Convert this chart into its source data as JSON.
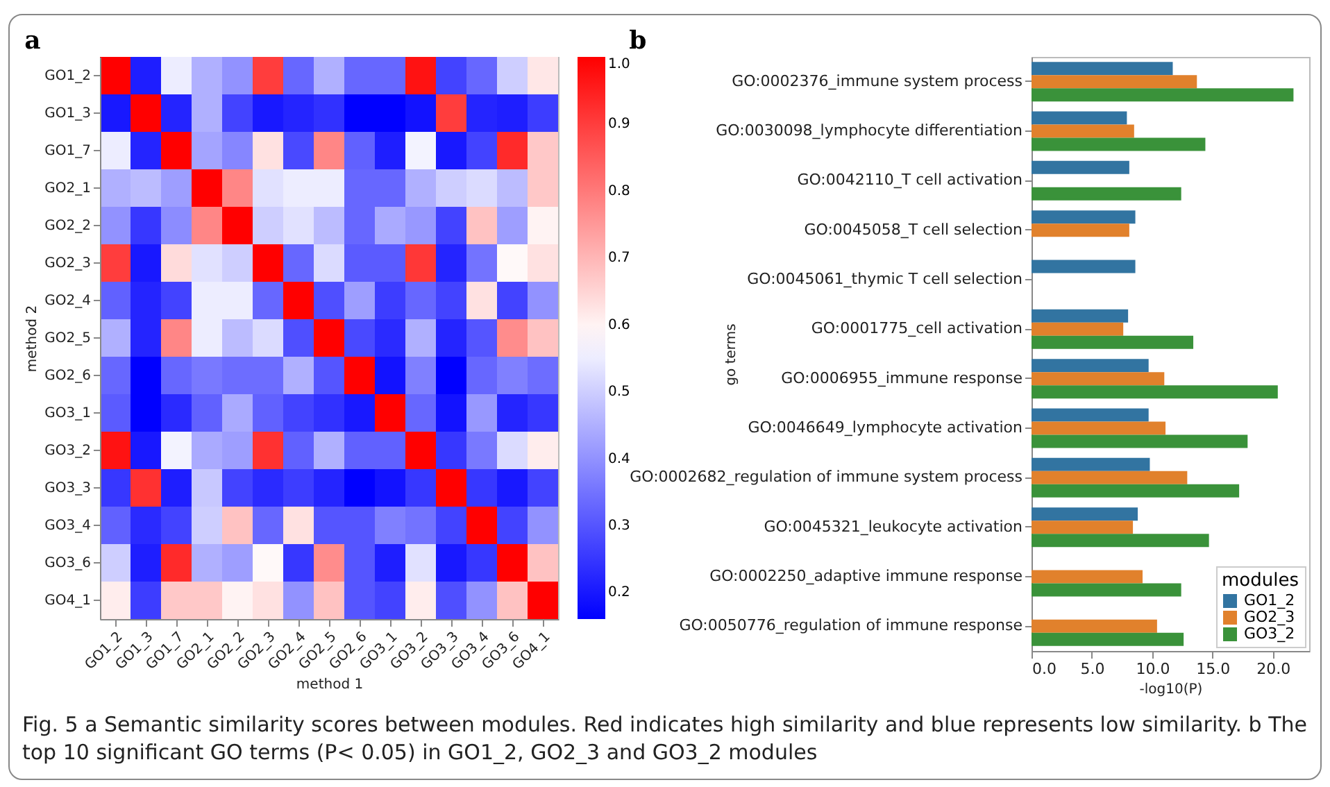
{
  "chart_data": [
    {
      "type": "heatmap",
      "title": "a",
      "xlabel": "method 1",
      "ylabel": "method 2",
      "categories": [
        "GO1_2",
        "GO1_3",
        "GO1_7",
        "GO2_1",
        "GO2_2",
        "GO2_3",
        "GO2_4",
        "GO2_5",
        "GO2_6",
        "GO3_1",
        "GO3_2",
        "GO3_3",
        "GO3_4",
        "GO3_6",
        "GO4_1"
      ],
      "y_categories": [
        "GO1_2",
        "GO1_3",
        "GO1_7",
        "GO2_1",
        "GO2_2",
        "GO2_3",
        "GO2_4",
        "GO2_5",
        "GO2_6",
        "GO3_1",
        "GO3_2",
        "GO3_3",
        "GO3_4",
        "GO3_6",
        "GO4_1"
      ],
      "cells": [
        [
          1.0,
          0.21,
          0.55,
          0.45,
          0.4,
          0.9,
          0.33,
          0.45,
          0.33,
          0.33,
          0.97,
          0.27,
          0.33,
          0.5,
          0.62
        ],
        [
          0.2,
          1.0,
          0.22,
          0.45,
          0.27,
          0.2,
          0.22,
          0.24,
          0.16,
          0.16,
          0.19,
          0.9,
          0.22,
          0.21,
          0.26
        ],
        [
          0.55,
          0.22,
          1.0,
          0.43,
          0.38,
          0.63,
          0.28,
          0.78,
          0.32,
          0.21,
          0.56,
          0.2,
          0.27,
          0.93,
          0.67
        ],
        [
          0.45,
          0.47,
          0.42,
          1.0,
          0.78,
          0.53,
          0.55,
          0.55,
          0.33,
          0.33,
          0.45,
          0.5,
          0.52,
          0.47,
          0.67
        ],
        [
          0.4,
          0.25,
          0.39,
          0.78,
          1.0,
          0.5,
          0.53,
          0.47,
          0.33,
          0.44,
          0.41,
          0.27,
          0.68,
          0.42,
          0.6
        ],
        [
          0.9,
          0.2,
          0.64,
          0.53,
          0.5,
          1.0,
          0.33,
          0.52,
          0.31,
          0.31,
          0.91,
          0.22,
          0.35,
          0.59,
          0.63
        ],
        [
          0.32,
          0.22,
          0.27,
          0.55,
          0.55,
          0.33,
          1.0,
          0.29,
          0.42,
          0.26,
          0.33,
          0.27,
          0.63,
          0.27,
          0.4
        ],
        [
          0.45,
          0.22,
          0.78,
          0.55,
          0.47,
          0.52,
          0.29,
          1.0,
          0.28,
          0.23,
          0.45,
          0.22,
          0.3,
          0.77,
          0.68
        ],
        [
          0.33,
          0.16,
          0.33,
          0.36,
          0.34,
          0.34,
          0.45,
          0.3,
          1.0,
          0.19,
          0.37,
          0.16,
          0.33,
          0.37,
          0.34
        ],
        [
          0.31,
          0.16,
          0.23,
          0.32,
          0.44,
          0.32,
          0.27,
          0.24,
          0.2,
          1.0,
          0.33,
          0.19,
          0.41,
          0.22,
          0.25
        ],
        [
          0.97,
          0.2,
          0.56,
          0.44,
          0.42,
          0.92,
          0.32,
          0.45,
          0.32,
          0.32,
          1.0,
          0.25,
          0.36,
          0.52,
          0.61
        ],
        [
          0.25,
          0.92,
          0.21,
          0.49,
          0.27,
          0.23,
          0.26,
          0.22,
          0.16,
          0.19,
          0.25,
          1.0,
          0.25,
          0.2,
          0.27
        ],
        [
          0.32,
          0.23,
          0.27,
          0.5,
          0.68,
          0.33,
          0.63,
          0.3,
          0.3,
          0.37,
          0.35,
          0.27,
          1.0,
          0.27,
          0.4
        ],
        [
          0.5,
          0.21,
          0.93,
          0.45,
          0.42,
          0.59,
          0.25,
          0.77,
          0.3,
          0.21,
          0.53,
          0.2,
          0.25,
          1.0,
          0.68
        ],
        [
          0.61,
          0.26,
          0.67,
          0.67,
          0.6,
          0.63,
          0.4,
          0.68,
          0.3,
          0.27,
          0.61,
          0.29,
          0.4,
          0.68,
          1.0
        ]
      ],
      "clim": [
        0.16,
        1.0
      ],
      "cticks": [
        0.2,
        0.3,
        0.4,
        0.5,
        0.6,
        0.7,
        0.8,
        0.9,
        {
          "value": 1.0,
          "label": "1.0"
        }
      ],
      "annotations": [
        "Fig. 5 a Semantic similarity scores between modules. Red indicates high similarity and blue represents low similarity. b The top 10 significant GO terms (P< 0.05) in GO1_2, GO2_3 and GO3_2 modules"
      ]
    },
    {
      "type": "bar",
      "orientation": "horizontal",
      "title": "b",
      "xlabel": "-log10(P)",
      "ylabel": "go terms",
      "legend_title": "modules",
      "legend": "bottom right",
      "categories": [
        "GO:0002376_immune system process",
        "GO:0030098_lymphocyte differentiation",
        "GO:0042110_T cell activation",
        "GO:0045058_T cell selection",
        "GO:0045061_thymic T cell selection",
        "GO:0001775_cell activation",
        "GO:0006955_immune response",
        "GO:0046649_lymphocyte activation",
        "GO:0002682_regulation of immune system process",
        "GO:0045321_leukocyte activation",
        "GO:0002250_adaptive immune response",
        "GO:0050776_regulation of immune response"
      ],
      "series": [
        {
          "name": "GO1_2",
          "color": "#3274a1",
          "values": [
            11.7,
            7.9,
            8.1,
            8.6,
            8.6,
            8.0,
            9.7,
            9.7,
            9.8,
            8.8,
            null,
            null
          ]
        },
        {
          "name": "GO2_3",
          "color": "#e1812c",
          "values": [
            13.7,
            8.5,
            null,
            8.1,
            null,
            7.6,
            11.0,
            11.1,
            12.9,
            8.4,
            9.2,
            10.4
          ]
        },
        {
          "name": "GO3_2",
          "color": "#3a923a",
          "values": [
            21.7,
            14.4,
            12.4,
            null,
            null,
            13.4,
            20.4,
            17.9,
            17.2,
            14.7,
            12.4,
            12.6
          ]
        }
      ],
      "xlim": [
        0,
        23
      ],
      "xticks": [
        {
          "value": 0,
          "label": "0.0"
        },
        {
          "value": 5,
          "label": "5.0"
        },
        {
          "value": 10,
          "label": "10.0"
        },
        {
          "value": 15,
          "label": "15.0"
        },
        {
          "value": 20,
          "label": "20.0"
        }
      ]
    }
  ]
}
